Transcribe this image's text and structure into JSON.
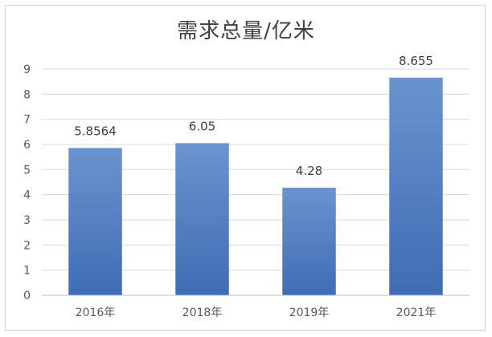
{
  "chart_data": {
    "type": "bar",
    "title": "需求总量/亿米",
    "xlabel": "",
    "ylabel": "",
    "categories": [
      "2016年",
      "2018年",
      "2019年",
      "2021年"
    ],
    "values": [
      5.8564,
      6.05,
      4.28,
      8.655
    ],
    "data_labels": [
      "5.8564",
      "6.05",
      "4.28",
      "8.655"
    ],
    "ylim": [
      0,
      9
    ],
    "yticks": [
      0,
      1,
      2,
      3,
      4,
      5,
      6,
      7,
      8,
      9
    ],
    "grid": true,
    "legend": "none",
    "bar_color": "#4f7fc4"
  }
}
